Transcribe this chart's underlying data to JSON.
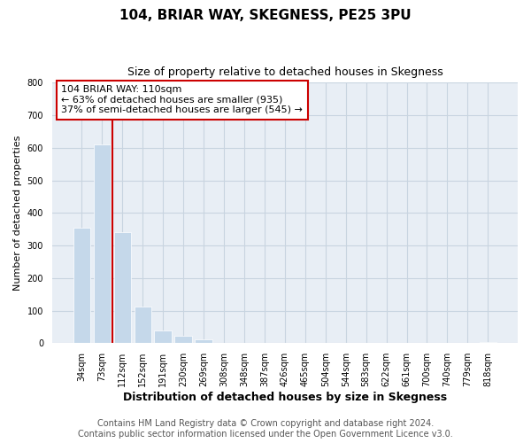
{
  "title": "104, BRIAR WAY, SKEGNESS, PE25 3PU",
  "subtitle": "Size of property relative to detached houses in Skegness",
  "xlabel": "Distribution of detached houses by size in Skegness",
  "ylabel": "Number of detached properties",
  "categories": [
    "34sqm",
    "73sqm",
    "112sqm",
    "152sqm",
    "191sqm",
    "230sqm",
    "269sqm",
    "308sqm",
    "348sqm",
    "387sqm",
    "426sqm",
    "465sqm",
    "504sqm",
    "544sqm",
    "583sqm",
    "622sqm",
    "661sqm",
    "700sqm",
    "740sqm",
    "779sqm",
    "818sqm"
  ],
  "values": [
    355,
    610,
    340,
    113,
    40,
    22,
    13,
    0,
    0,
    0,
    0,
    0,
    0,
    0,
    0,
    0,
    0,
    0,
    0,
    0,
    5
  ],
  "bar_color": "#c5d8ea",
  "annotation_text": "104 BRIAR WAY: 110sqm\n← 63% of detached houses are smaller (935)\n37% of semi-detached houses are larger (545) →",
  "annotation_box_color": "#ffffff",
  "annotation_border_color": "#cc0000",
  "ylim": [
    0,
    800
  ],
  "footer_line1": "Contains HM Land Registry data © Crown copyright and database right 2024.",
  "footer_line2": "Contains public sector information licensed under the Open Government Licence v3.0.",
  "background_color": "#ffffff",
  "plot_bg_color": "#e8eef5",
  "grid_color": "#c8d4e0",
  "vline_color": "#cc0000",
  "vline_x": 1.5,
  "title_fontsize": 11,
  "subtitle_fontsize": 9,
  "xlabel_fontsize": 9,
  "ylabel_fontsize": 8,
  "tick_fontsize": 7,
  "annotation_fontsize": 8,
  "footer_fontsize": 7
}
